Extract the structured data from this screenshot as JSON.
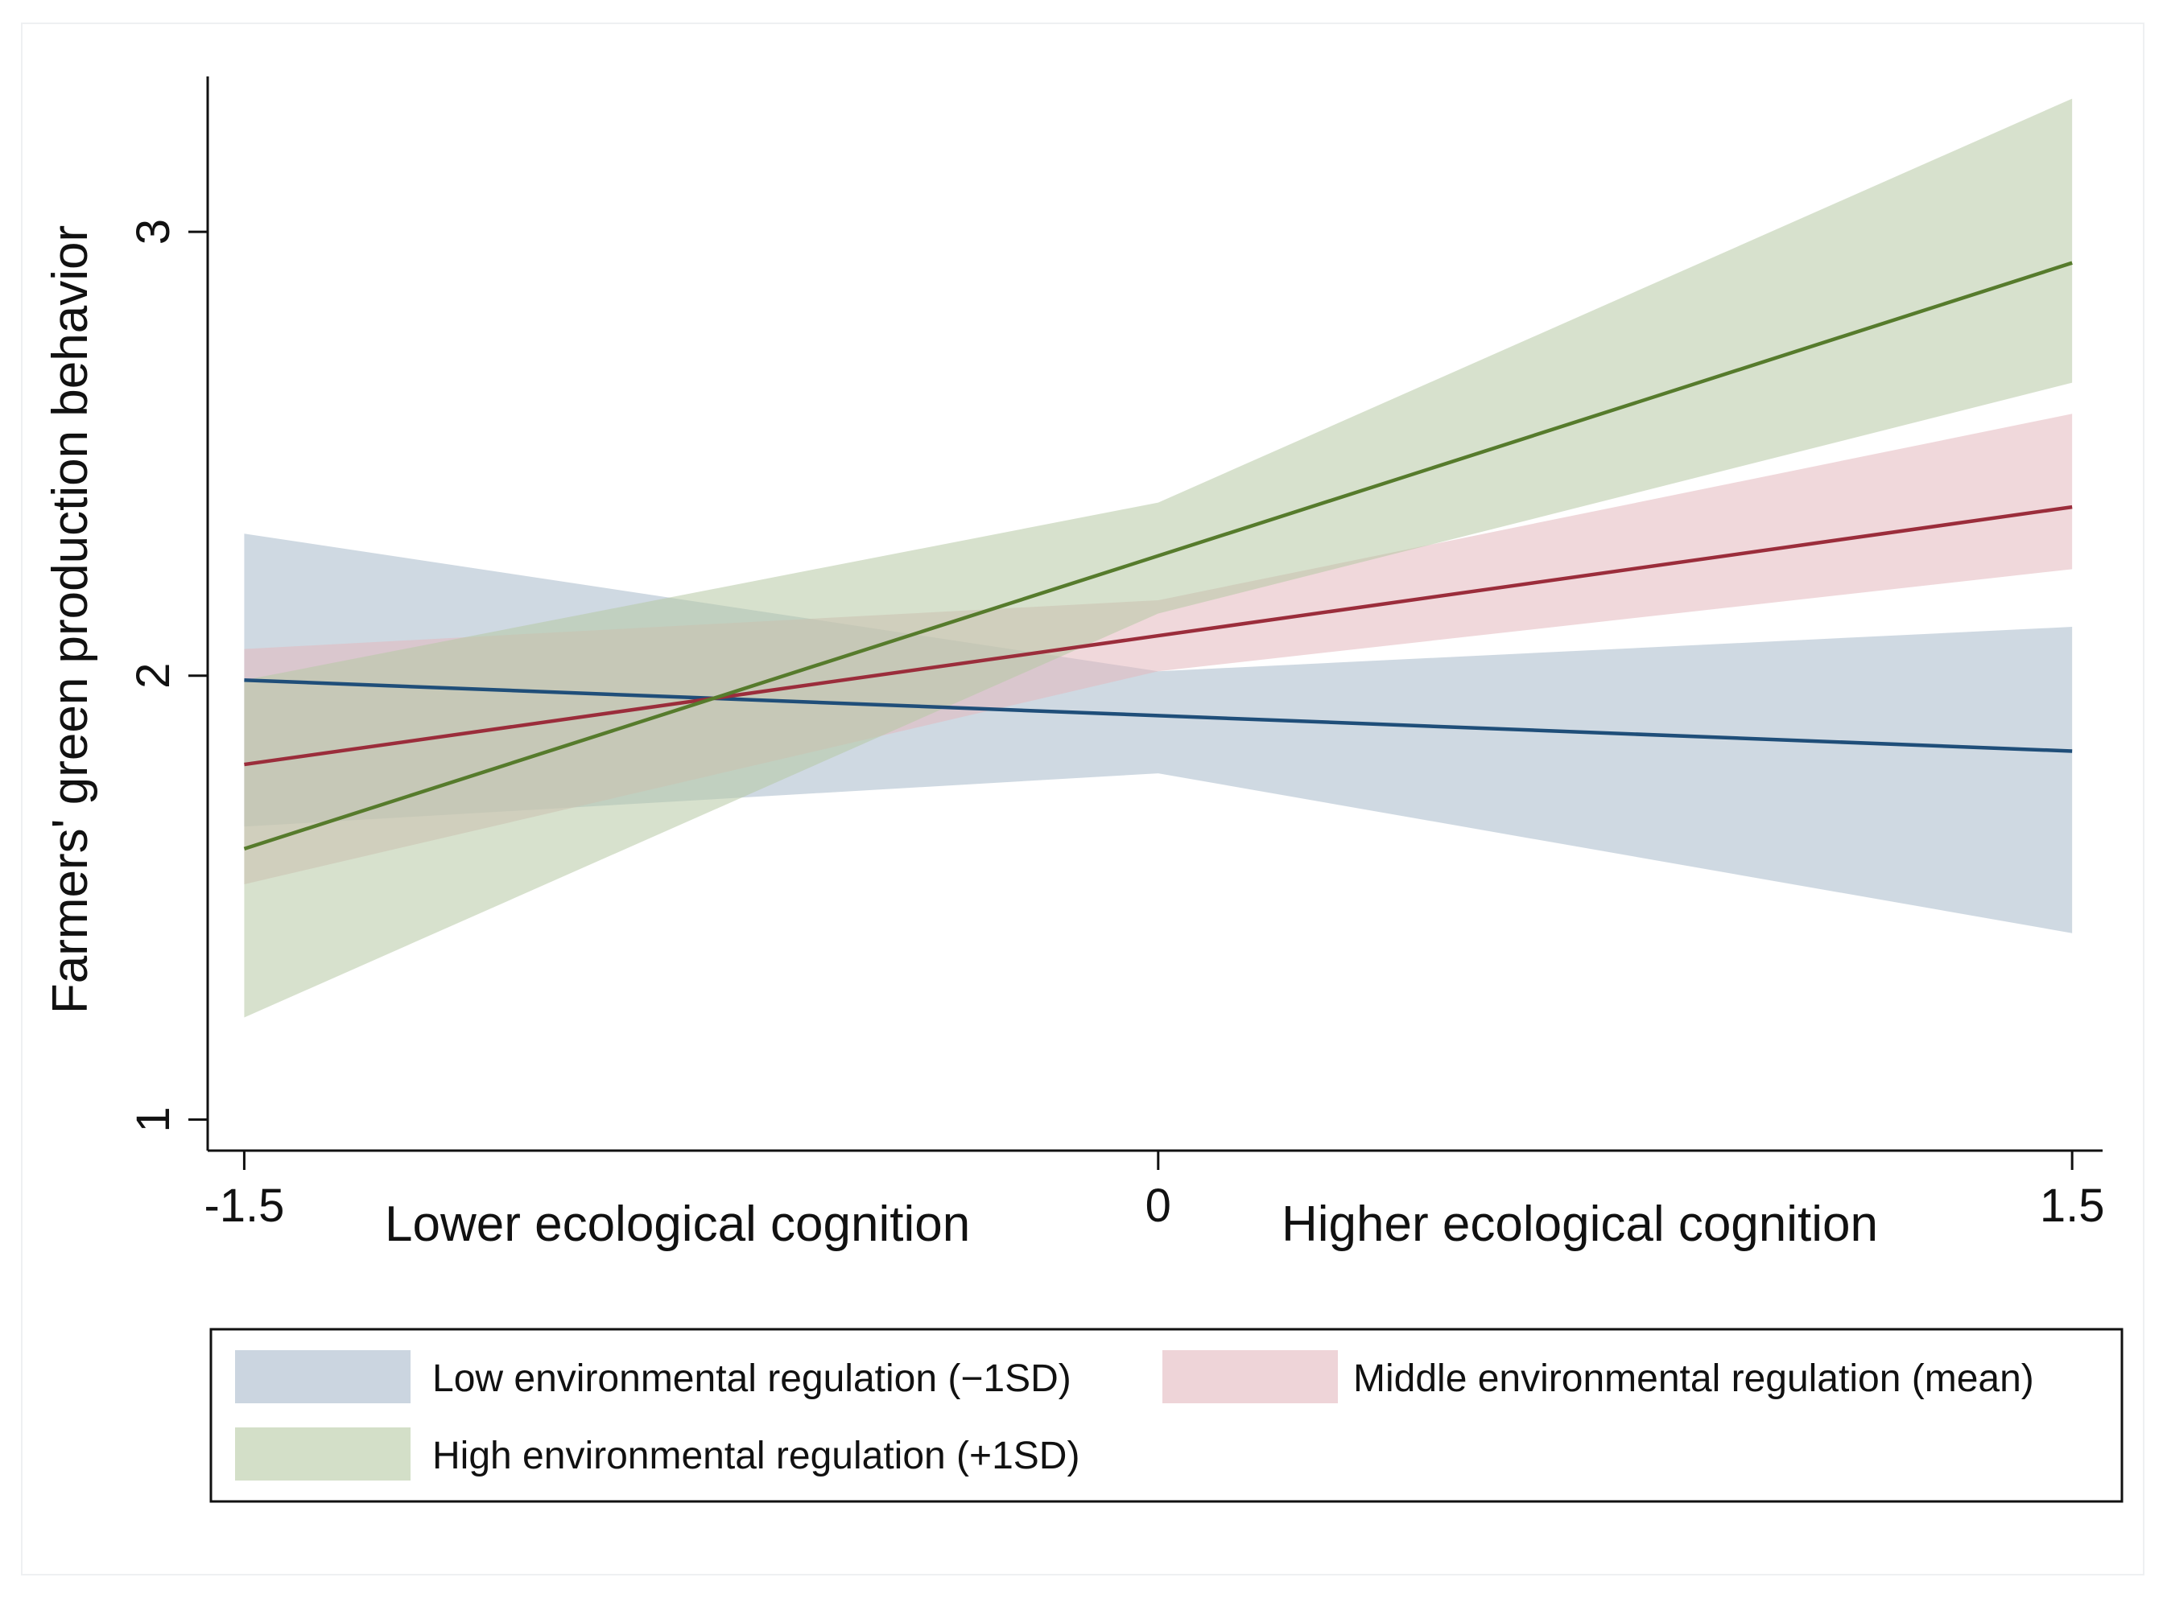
{
  "chart_data": {
    "type": "line",
    "title": "",
    "ylabel": "Farmers' green production behavior",
    "xlabel": "",
    "x_axis_annotations": [
      "Lower ecological cognition",
      "Higher ecological cognition"
    ],
    "x": [
      -1.5,
      0,
      1.5
    ],
    "x_tick_labels": [
      "-1.5",
      "0",
      "1.5"
    ],
    "y_ticks": [
      1,
      2,
      3
    ],
    "y_tick_labels": [
      "1",
      "2",
      "3"
    ],
    "xlim": [
      -1.56,
      1.55
    ],
    "ylim": [
      0.93,
      3.35
    ],
    "grid": false,
    "legend_position": "bottom",
    "series": [
      {
        "name": "Low environmental regulation (−1SD)",
        "values": [
          1.99,
          1.91,
          1.83
        ],
        "ci_lower": [
          1.66,
          1.78,
          1.42
        ],
        "ci_upper": [
          2.32,
          2.01,
          2.11
        ],
        "line_color": "#1f4e79",
        "band_color": "#a8b9cb"
      },
      {
        "name": "Middle environmental regulation (mean)",
        "values": [
          1.8,
          2.09,
          2.38
        ],
        "ci_lower": [
          1.53,
          2.01,
          2.24
        ],
        "ci_upper": [
          2.06,
          2.17,
          2.59
        ],
        "line_color": "#9b2d3b",
        "band_color": "#e3b8be"
      },
      {
        "name": "High environmental regulation (+1SD)",
        "values": [
          1.61,
          2.27,
          2.93
        ],
        "ci_lower": [
          1.23,
          2.14,
          2.66
        ],
        "ci_upper": [
          1.99,
          2.39,
          3.3
        ],
        "line_color": "#567b2c",
        "band_color": "#b6c9a4"
      }
    ]
  }
}
